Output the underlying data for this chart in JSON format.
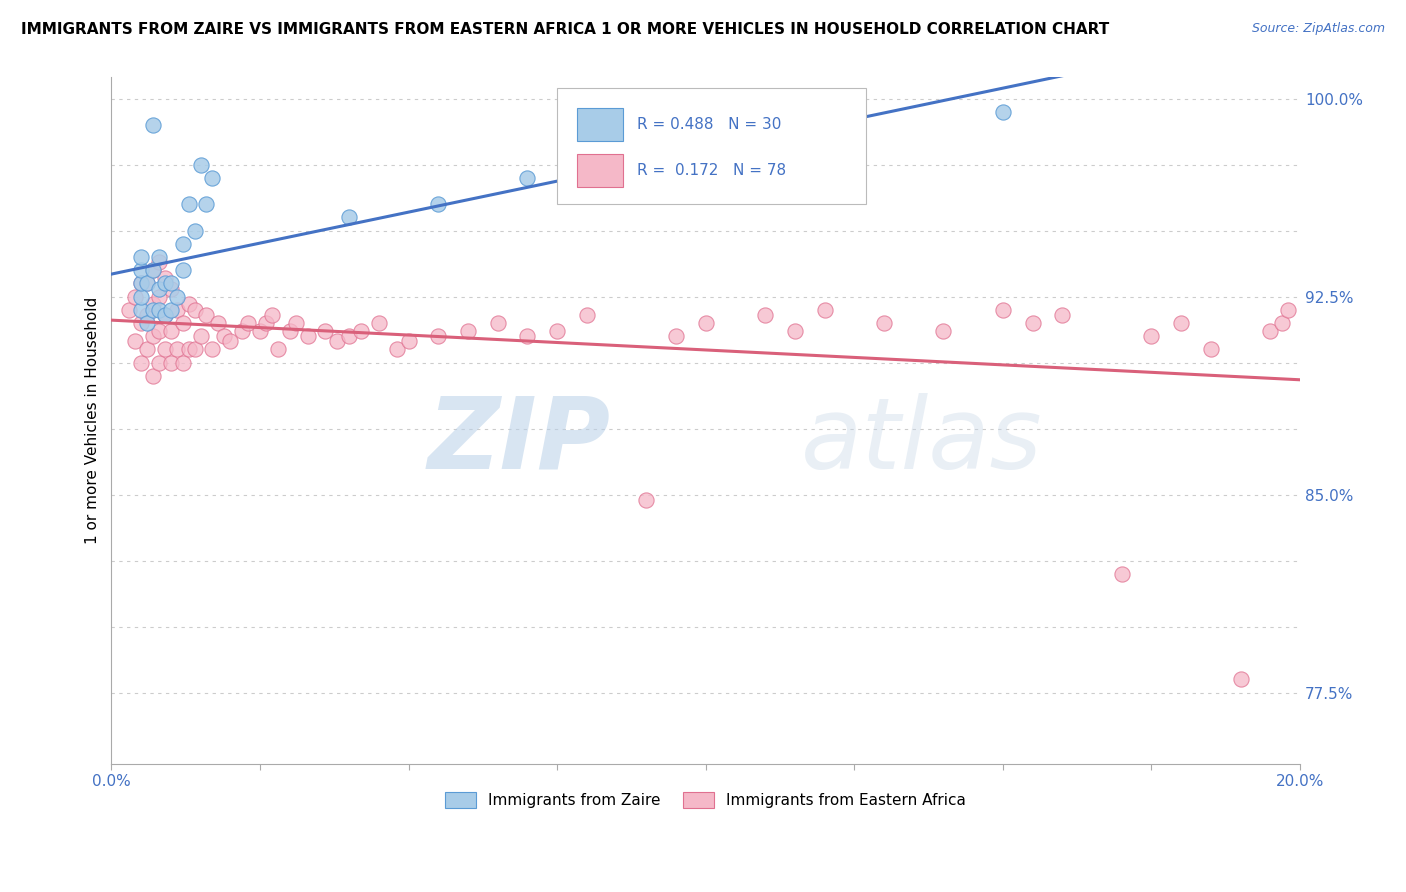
{
  "title": "IMMIGRANTS FROM ZAIRE VS IMMIGRANTS FROM EASTERN AFRICA 1 OR MORE VEHICLES IN HOUSEHOLD CORRELATION CHART",
  "source": "Source: ZipAtlas.com",
  "ylabel_label": "1 or more Vehicles in Household",
  "legend_label_zaire": "Immigrants from Zaire",
  "legend_label_eastern": "Immigrants from Eastern Africa",
  "zaire_color": "#a8cce8",
  "eastern_color": "#f5b8c8",
  "zaire_edge_color": "#5b9bd5",
  "eastern_edge_color": "#e07090",
  "zaire_line_color": "#4472c4",
  "eastern_line_color": "#d9607a",
  "watermark_zip": "ZIP",
  "watermark_atlas": "atlas",
  "x_min": 0.0,
  "x_max": 0.2,
  "y_min": 0.748,
  "y_max": 1.008,
  "y_ticks": [
    0.775,
    0.8,
    0.825,
    0.85,
    0.875,
    0.9,
    0.925,
    0.95,
    0.975,
    1.0
  ],
  "y_labeled": [
    0.775,
    0.85,
    0.925,
    1.0
  ],
  "x_ticks": [
    0.0,
    0.025,
    0.05,
    0.075,
    0.1,
    0.125,
    0.15,
    0.175,
    0.2
  ],
  "zaire_scatter_x": [
    0.005,
    0.005,
    0.005,
    0.005,
    0.005,
    0.006,
    0.006,
    0.007,
    0.007,
    0.007,
    0.008,
    0.008,
    0.008,
    0.009,
    0.009,
    0.01,
    0.01,
    0.011,
    0.012,
    0.012,
    0.013,
    0.014,
    0.015,
    0.016,
    0.017,
    0.04,
    0.055,
    0.07,
    0.085,
    0.15
  ],
  "zaire_scatter_y": [
    0.92,
    0.925,
    0.93,
    0.935,
    0.94,
    0.915,
    0.93,
    0.92,
    0.935,
    0.99,
    0.92,
    0.928,
    0.94,
    0.918,
    0.93,
    0.92,
    0.93,
    0.925,
    0.935,
    0.945,
    0.96,
    0.95,
    0.975,
    0.96,
    0.97,
    0.955,
    0.96,
    0.97,
    0.975,
    0.995
  ],
  "eastern_scatter_x": [
    0.003,
    0.004,
    0.004,
    0.005,
    0.005,
    0.005,
    0.006,
    0.006,
    0.006,
    0.007,
    0.007,
    0.007,
    0.007,
    0.008,
    0.008,
    0.008,
    0.008,
    0.009,
    0.009,
    0.009,
    0.01,
    0.01,
    0.01,
    0.011,
    0.011,
    0.012,
    0.012,
    0.013,
    0.013,
    0.014,
    0.014,
    0.015,
    0.016,
    0.017,
    0.018,
    0.019,
    0.02,
    0.022,
    0.023,
    0.025,
    0.026,
    0.027,
    0.028,
    0.03,
    0.031,
    0.033,
    0.036,
    0.038,
    0.04,
    0.042,
    0.045,
    0.048,
    0.05,
    0.055,
    0.06,
    0.065,
    0.07,
    0.075,
    0.08,
    0.09,
    0.095,
    0.1,
    0.11,
    0.115,
    0.12,
    0.13,
    0.14,
    0.15,
    0.155,
    0.16,
    0.17,
    0.175,
    0.18,
    0.185,
    0.19,
    0.195,
    0.197,
    0.198
  ],
  "eastern_scatter_y": [
    0.92,
    0.908,
    0.925,
    0.9,
    0.915,
    0.93,
    0.905,
    0.918,
    0.93,
    0.895,
    0.91,
    0.922,
    0.935,
    0.9,
    0.912,
    0.925,
    0.938,
    0.905,
    0.918,
    0.932,
    0.9,
    0.912,
    0.928,
    0.905,
    0.92,
    0.9,
    0.915,
    0.905,
    0.922,
    0.905,
    0.92,
    0.91,
    0.918,
    0.905,
    0.915,
    0.91,
    0.908,
    0.912,
    0.915,
    0.912,
    0.915,
    0.918,
    0.905,
    0.912,
    0.915,
    0.91,
    0.912,
    0.908,
    0.91,
    0.912,
    0.915,
    0.905,
    0.908,
    0.91,
    0.912,
    0.915,
    0.91,
    0.912,
    0.918,
    0.848,
    0.91,
    0.915,
    0.918,
    0.912,
    0.92,
    0.915,
    0.912,
    0.92,
    0.915,
    0.918,
    0.82,
    0.91,
    0.915,
    0.905,
    0.78,
    0.912,
    0.915,
    0.92
  ]
}
